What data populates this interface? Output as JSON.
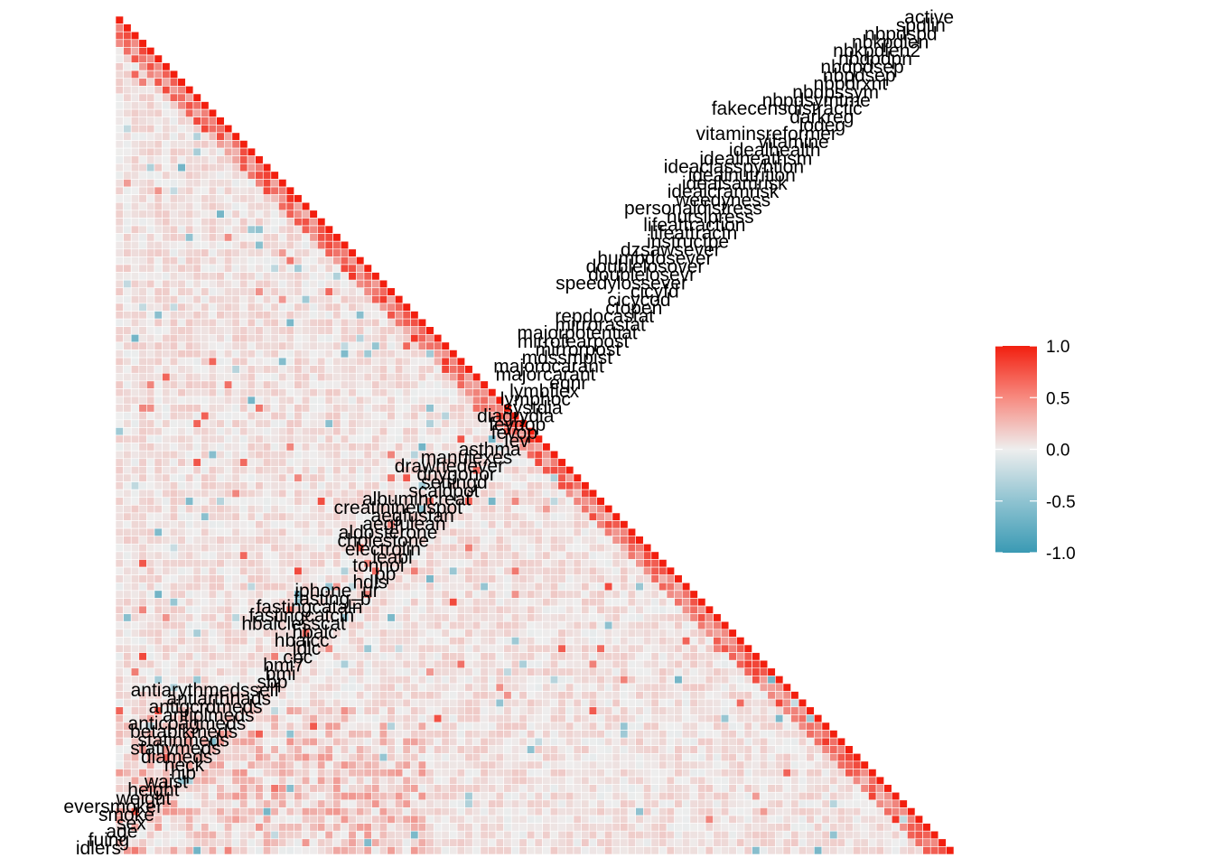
{
  "chart_data": {
    "type": "heatmap",
    "title": "",
    "xlabel": "",
    "ylabel": "",
    "layout": "lower-triangle correlation matrix, variable names along diagonal",
    "grid": false,
    "legend": {
      "placement": "right",
      "scale": "diverging",
      "low_color": "#3a9ab4",
      "mid_color": "#eeeeee",
      "high_color": "#f21f0f",
      "range": [
        -1.0,
        1.0
      ],
      "ticks": [
        "1.0",
        "0.5",
        "0.0",
        "-0.5",
        "-1.0"
      ]
    },
    "variables_visible": [
      "active",
      "spdlin",
      "nbpdspd",
      "nbkpdlen",
      "nbkpdlen2",
      "nbdpdpn",
      "nbdpdsep",
      "nbpdsep",
      "nbpdrxnt",
      "nbdpssym",
      "nbpdsymtme",
      "fakecensdistractic",
      "darkreg",
      "lodeg",
      "vitaminsreformer",
      "vitamine",
      "idealhealth",
      "idealheathsm",
      "ideaclasspyhtion",
      "idealnutrition",
      "idealsamrisk",
      "idealcramrisk",
      "weedyness",
      "personaldistress",
      "nursipress",
      "lifeattraction",
      "lifeattractn",
      "instructpe",
      "dzsawsever",
      "humbdosever",
      "doublelosover",
      "doublelosevr",
      "speedylossever",
      "cicyfd",
      "cicycod",
      "ctopen",
      "repdocastat",
      "mirrorastat",
      "majorpotentiat",
      "mirrofearpost",
      "mirrorpost",
      "mdssmpist",
      "majorocarant",
      "majorcarant",
      "eqnr",
      "lymbflex",
      "lymphoc",
      "systdia",
      "diagrydia",
      "feydop",
      "fevop",
      "Iev",
      "asthma",
      "manulexes",
      "drawhedever",
      "dnygonor",
      "settingd",
      "scaldpot",
      "albumincreat",
      "creatinineuspot",
      "aegfustan",
      "aegfulean",
      "aldosterone",
      "cholestone",
      "electrolin",
      "leabl",
      "tonnol",
      "pp",
      "hdls",
      "iphone_ur",
      "fasting_b",
      "fastingcataln",
      "fastingcatcin",
      "hbalclesscat",
      "hbalc",
      "hbalcc",
      "ldlc",
      "cbc",
      "bmi7",
      "bmi",
      "sbp",
      "antiarythmedsself",
      "antiarthnads",
      "antigcrdmeds",
      "antiplmeds",
      "anticoagmeds",
      "betablkmeds",
      "statinmeds",
      "stativmeds",
      "diameds",
      "neck",
      "hip",
      "waist",
      "height",
      "weight",
      "eversmoker",
      "smoke",
      "sex",
      "age",
      "fuing",
      "idlers"
    ]
  }
}
